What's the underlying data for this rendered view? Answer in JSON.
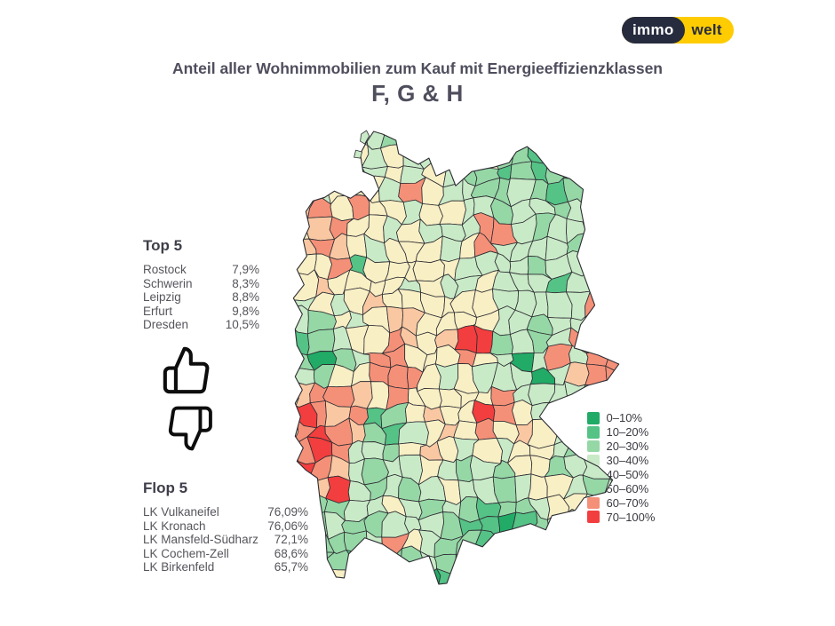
{
  "brand": {
    "logo_left": "immo",
    "logo_right": "welt",
    "yellow": "#ffcc02",
    "navy": "#262b3e"
  },
  "title": {
    "line1": "Anteil aller Wohnimmobilien zum Kauf mit Energieeffizienzklassen",
    "line2": "F, G & H"
  },
  "top5": {
    "heading": "Top 5",
    "rows": [
      {
        "label": "Rostock",
        "value": "7,9%"
      },
      {
        "label": "Schwerin",
        "value": "8,3%"
      },
      {
        "label": "Leipzig",
        "value": "8,8%"
      },
      {
        "label": "Erfurt",
        "value": "9,8%"
      },
      {
        "label": "Dresden",
        "value": "10,5%"
      }
    ]
  },
  "flop5": {
    "heading": "Flop 5",
    "rows": [
      {
        "label": "LK Vulkaneifel",
        "value": "76,09%"
      },
      {
        "label": "LK Kronach",
        "value": "76,06%"
      },
      {
        "label": "LK Mansfeld-Südharz",
        "value": "72,1%"
      },
      {
        "label": "LK Cochem-Zell",
        "value": "68,6%"
      },
      {
        "label": "LK Birkenfeld",
        "value": "65,7%"
      }
    ]
  },
  "legend": {
    "items": [
      {
        "label": "0–10%",
        "color": "#21ab66"
      },
      {
        "label": "10–20%",
        "color": "#55c286"
      },
      {
        "label": "20–30%",
        "color": "#96d7a6"
      },
      {
        "label": "30–40%",
        "color": "#c9eac7"
      },
      {
        "label": "40–50%",
        "color": "#f9efc5"
      },
      {
        "label": "50–60%",
        "color": "#f9c8a3"
      },
      {
        "label": "60–70%",
        "color": "#f59078"
      },
      {
        "label": "70–100%",
        "color": "#f23e3e"
      }
    ]
  },
  "map": {
    "cols": 18,
    "legend_colors": [
      "#21ab66",
      "#55c286",
      "#96d7a6",
      "#c9eac7",
      "#f9efc5",
      "#f9c8a3",
      "#f59078",
      "#f23e3e"
    ],
    "grid": [
      "...3323...........",
      "..343433...2212...",
      "44343434322121222.",
      "434443643322321222",
      "564644344332332322",
      "456443433366323322",
      "565434443463333233",
      "446144444333323333",
      "454444343343331366",
      "343454444443333363",
      "324345544443323333",
      "123446545772323663",
      "202366444643036366",
      "324466643433303566",
      "566546444446333323",
      "7656124544764332..",
      "6765213454645433..",
      "676332454343443232",
      "765323343232442333",
      "257323234332344323",
      "222334323212234432",
      "223223332110123332",
      ".22236432210122...",
      ".2213223222122....",
      "......2011........"
    ]
  },
  "chart_data": {
    "type": "heatmap",
    "title": "Anteil aller Wohnimmobilien zum Kauf mit Energieeffizienzklassen F, G & H",
    "unit": "%",
    "legend_bins": [
      "0–10%",
      "10–20%",
      "20–30%",
      "30–40%",
      "40–50%",
      "50–60%",
      "60–70%",
      "70–100%"
    ],
    "legend_colors": [
      "#21ab66",
      "#55c286",
      "#96d7a6",
      "#c9eac7",
      "#f9efc5",
      "#f9c8a3",
      "#f59078",
      "#f23e3e"
    ],
    "top5": [
      {
        "name": "Rostock",
        "value": 7.9
      },
      {
        "name": "Schwerin",
        "value": 8.3
      },
      {
        "name": "Leipzig",
        "value": 8.8
      },
      {
        "name": "Erfurt",
        "value": 9.8
      },
      {
        "name": "Dresden",
        "value": 10.5
      }
    ],
    "flop5": [
      {
        "name": "LK Vulkaneifel",
        "value": 76.09
      },
      {
        "name": "LK Kronach",
        "value": 76.06
      },
      {
        "name": "LK Mansfeld-Südharz",
        "value": 72.1
      },
      {
        "name": "LK Cochem-Zell",
        "value": 68.6
      },
      {
        "name": "LK Birkenfeld",
        "value": 65.7
      }
    ]
  }
}
